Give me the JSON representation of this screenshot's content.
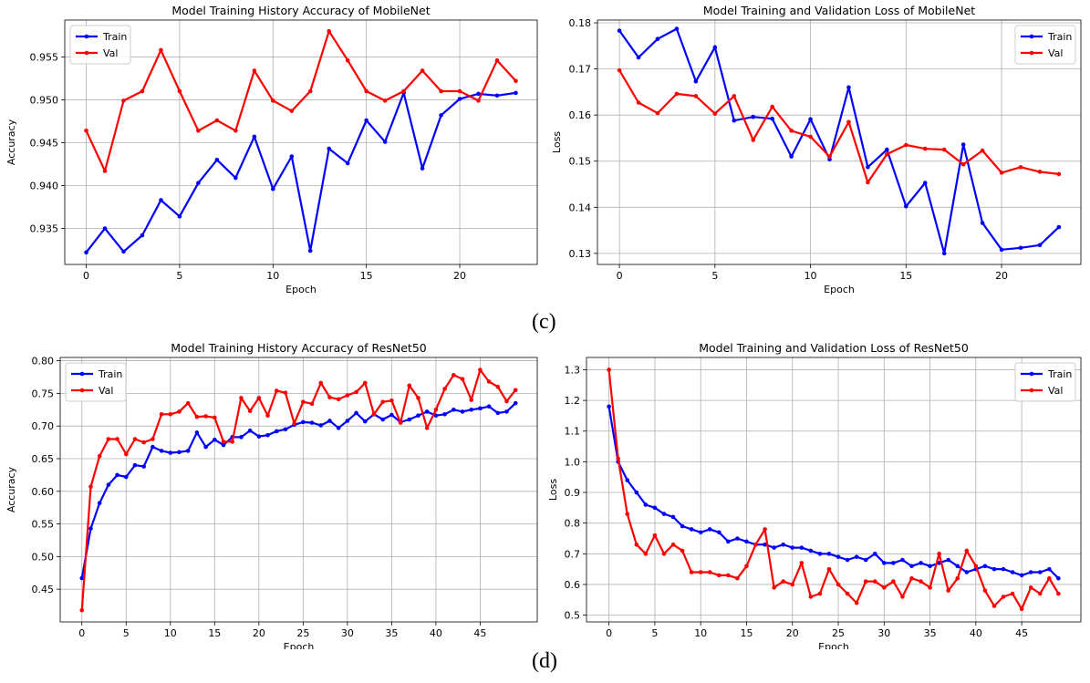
{
  "captions": {
    "top": "(c)",
    "bottom": "(d)"
  },
  "colors": {
    "train": "#0000ff",
    "val": "#ff0000",
    "grid": "#b0b0b0"
  },
  "chart_data": [
    {
      "type": "line",
      "title": "Model Training History Accuracy of MobileNet",
      "xlabel": "Epoch",
      "ylabel": "Accuracy",
      "xlim": [
        -1.15,
        24.15
      ],
      "ylim": [
        0.9308,
        0.9593
      ],
      "xticks": [
        0,
        5,
        10,
        15,
        20
      ],
      "yticks": [
        0.935,
        0.94,
        0.945,
        0.95,
        0.955
      ],
      "ytick_labels": [
        "0.935",
        "0.940",
        "0.945",
        "0.950",
        "0.955"
      ],
      "grid": true,
      "legend_loc": "upper left",
      "x": [
        0,
        1,
        2,
        3,
        4,
        5,
        6,
        7,
        8,
        9,
        10,
        11,
        12,
        13,
        14,
        15,
        16,
        17,
        18,
        19,
        20,
        21,
        22,
        23
      ],
      "series": [
        {
          "name": "Train",
          "color": "#0000ff",
          "values": [
            0.9322,
            0.935,
            0.9323,
            0.9342,
            0.9383,
            0.9364,
            0.9403,
            0.943,
            0.9409,
            0.9457,
            0.9396,
            0.9434,
            0.9324,
            0.9443,
            0.9426,
            0.9476,
            0.9451,
            0.9508,
            0.942,
            0.9482,
            0.9501,
            0.9507,
            0.9505,
            0.9508
          ]
        },
        {
          "name": "Val",
          "color": "#ff0000",
          "values": [
            0.9464,
            0.9417,
            0.9499,
            0.951,
            0.9558,
            0.951,
            0.9464,
            0.9476,
            0.9464,
            0.9534,
            0.9499,
            0.9487,
            0.951,
            0.958,
            0.9546,
            0.951,
            0.9499,
            0.951,
            0.9534,
            0.951,
            0.951,
            0.9499,
            0.9546,
            0.9522
          ]
        }
      ]
    },
    {
      "type": "line",
      "title": "Model Training and Validation Loss of MobileNet",
      "xlabel": "Epoch",
      "ylabel": "Loss",
      "xlim": [
        -1.15,
        24.15
      ],
      "ylim": [
        0.1276,
        0.1806
      ],
      "xticks": [
        0,
        5,
        10,
        15,
        20
      ],
      "yticks": [
        0.13,
        0.14,
        0.15,
        0.16,
        0.17,
        0.18
      ],
      "ytick_labels": [
        "0.13",
        "0.14",
        "0.15",
        "0.16",
        "0.17",
        "0.18"
      ],
      "grid": true,
      "legend_loc": "upper right",
      "x": [
        0,
        1,
        2,
        3,
        4,
        5,
        6,
        7,
        8,
        9,
        10,
        11,
        12,
        13,
        14,
        15,
        16,
        17,
        18,
        19,
        20,
        21,
        22,
        23
      ],
      "series": [
        {
          "name": "Train",
          "color": "#0000ff",
          "values": [
            0.1783,
            0.1725,
            0.1765,
            0.1787,
            0.1673,
            0.1747,
            0.1588,
            0.1596,
            0.1592,
            0.151,
            0.1591,
            0.1504,
            0.166,
            0.1487,
            0.1525,
            0.1402,
            0.1453,
            0.13,
            0.1536,
            0.1366,
            0.1308,
            0.1312,
            0.1318,
            0.1357
          ]
        },
        {
          "name": "Val",
          "color": "#ff0000",
          "values": [
            0.1697,
            0.1627,
            0.1604,
            0.1646,
            0.1641,
            0.1603,
            0.1641,
            0.1546,
            0.1618,
            0.1566,
            0.1553,
            0.151,
            0.1585,
            0.1454,
            0.1515,
            0.1535,
            0.1527,
            0.1525,
            0.1493,
            0.1523,
            0.1475,
            0.1487,
            0.1477,
            0.1472
          ]
        }
      ]
    },
    {
      "type": "line",
      "title": "Model Training History Accuracy of ResNet50",
      "xlabel": "Epoch",
      "ylabel": "Accuracy",
      "xlim": [
        -2.45,
        51.45
      ],
      "ylim": [
        0.4,
        0.805
      ],
      "xticks": [
        0,
        5,
        10,
        15,
        20,
        25,
        30,
        35,
        40,
        45
      ],
      "yticks": [
        0.45,
        0.5,
        0.55,
        0.6,
        0.65,
        0.7,
        0.75,
        0.8
      ],
      "ytick_labels": [
        "0.45",
        "0.50",
        "0.55",
        "0.60",
        "0.65",
        "0.70",
        "0.75",
        "0.80"
      ],
      "grid": true,
      "legend_loc": "upper left",
      "x": [
        0,
        1,
        2,
        3,
        4,
        5,
        6,
        7,
        8,
        9,
        10,
        11,
        12,
        13,
        14,
        15,
        16,
        17,
        18,
        19,
        20,
        21,
        22,
        23,
        24,
        25,
        26,
        27,
        28,
        29,
        30,
        31,
        32,
        33,
        34,
        35,
        36,
        37,
        38,
        39,
        40,
        41,
        42,
        43,
        44,
        45,
        46,
        47,
        48,
        49
      ],
      "series": [
        {
          "name": "Train",
          "color": "#0000ff",
          "values": [
            0.467,
            0.543,
            0.582,
            0.61,
            0.625,
            0.622,
            0.64,
            0.638,
            0.668,
            0.662,
            0.659,
            0.66,
            0.662,
            0.69,
            0.668,
            0.679,
            0.671,
            0.683,
            0.683,
            0.693,
            0.684,
            0.686,
            0.692,
            0.695,
            0.702,
            0.706,
            0.705,
            0.701,
            0.708,
            0.697,
            0.708,
            0.72,
            0.707,
            0.718,
            0.71,
            0.717,
            0.706,
            0.71,
            0.716,
            0.722,
            0.716,
            0.718,
            0.725,
            0.722,
            0.725,
            0.727,
            0.73,
            0.72,
            0.722,
            0.735
          ]
        },
        {
          "name": "Val",
          "color": "#ff0000",
          "values": [
            0.418,
            0.607,
            0.654,
            0.68,
            0.68,
            0.657,
            0.68,
            0.675,
            0.68,
            0.718,
            0.718,
            0.722,
            0.735,
            0.714,
            0.715,
            0.713,
            0.676,
            0.676,
            0.743,
            0.723,
            0.743,
            0.716,
            0.754,
            0.751,
            0.704,
            0.737,
            0.734,
            0.766,
            0.744,
            0.741,
            0.747,
            0.752,
            0.766,
            0.718,
            0.737,
            0.739,
            0.705,
            0.762,
            0.743,
            0.697,
            0.725,
            0.757,
            0.778,
            0.772,
            0.74,
            0.786,
            0.768,
            0.76,
            0.738,
            0.755
          ]
        }
      ]
    },
    {
      "type": "line",
      "title": "Model Training and Validation Loss of ResNet50",
      "xlabel": "Epoch",
      "ylabel": "Loss",
      "xlim": [
        -2.45,
        51.45
      ],
      "ylim": [
        0.478,
        1.34
      ],
      "xticks": [
        0,
        5,
        10,
        15,
        20,
        25,
        30,
        35,
        40,
        45
      ],
      "yticks": [
        0.5,
        0.6,
        0.7,
        0.8,
        0.9,
        1.0,
        1.1,
        1.2,
        1.3
      ],
      "ytick_labels": [
        "0.5",
        "0.6",
        "0.7",
        "0.8",
        "0.9",
        "1.0",
        "1.1",
        "1.2",
        "1.3"
      ],
      "grid": true,
      "legend_loc": "upper right",
      "x": [
        0,
        1,
        2,
        3,
        4,
        5,
        6,
        7,
        8,
        9,
        10,
        11,
        12,
        13,
        14,
        15,
        16,
        17,
        18,
        19,
        20,
        21,
        22,
        23,
        24,
        25,
        26,
        27,
        28,
        29,
        30,
        31,
        32,
        33,
        34,
        35,
        36,
        37,
        38,
        39,
        40,
        41,
        42,
        43,
        44,
        45,
        46,
        47,
        48,
        49
      ],
      "series": [
        {
          "name": "Train",
          "color": "#0000ff",
          "values": [
            1.18,
            1.0,
            0.94,
            0.9,
            0.86,
            0.85,
            0.83,
            0.82,
            0.79,
            0.78,
            0.77,
            0.78,
            0.77,
            0.74,
            0.75,
            0.74,
            0.73,
            0.73,
            0.72,
            0.73,
            0.72,
            0.72,
            0.71,
            0.7,
            0.7,
            0.69,
            0.68,
            0.69,
            0.68,
            0.7,
            0.67,
            0.67,
            0.68,
            0.66,
            0.67,
            0.66,
            0.67,
            0.68,
            0.66,
            0.64,
            0.65,
            0.66,
            0.65,
            0.65,
            0.64,
            0.63,
            0.64,
            0.64,
            0.65,
            0.62
          ]
        },
        {
          "name": "Val",
          "color": "#ff0000",
          "values": [
            1.3,
            1.01,
            0.83,
            0.73,
            0.7,
            0.76,
            0.7,
            0.73,
            0.71,
            0.64,
            0.64,
            0.64,
            0.63,
            0.63,
            0.62,
            0.66,
            0.73,
            0.78,
            0.59,
            0.61,
            0.6,
            0.67,
            0.56,
            0.57,
            0.65,
            0.6,
            0.57,
            0.54,
            0.61,
            0.61,
            0.59,
            0.61,
            0.56,
            0.62,
            0.61,
            0.59,
            0.7,
            0.58,
            0.62,
            0.71,
            0.66,
            0.58,
            0.53,
            0.56,
            0.57,
            0.52,
            0.59,
            0.57,
            0.62,
            0.57
          ]
        }
      ]
    }
  ]
}
